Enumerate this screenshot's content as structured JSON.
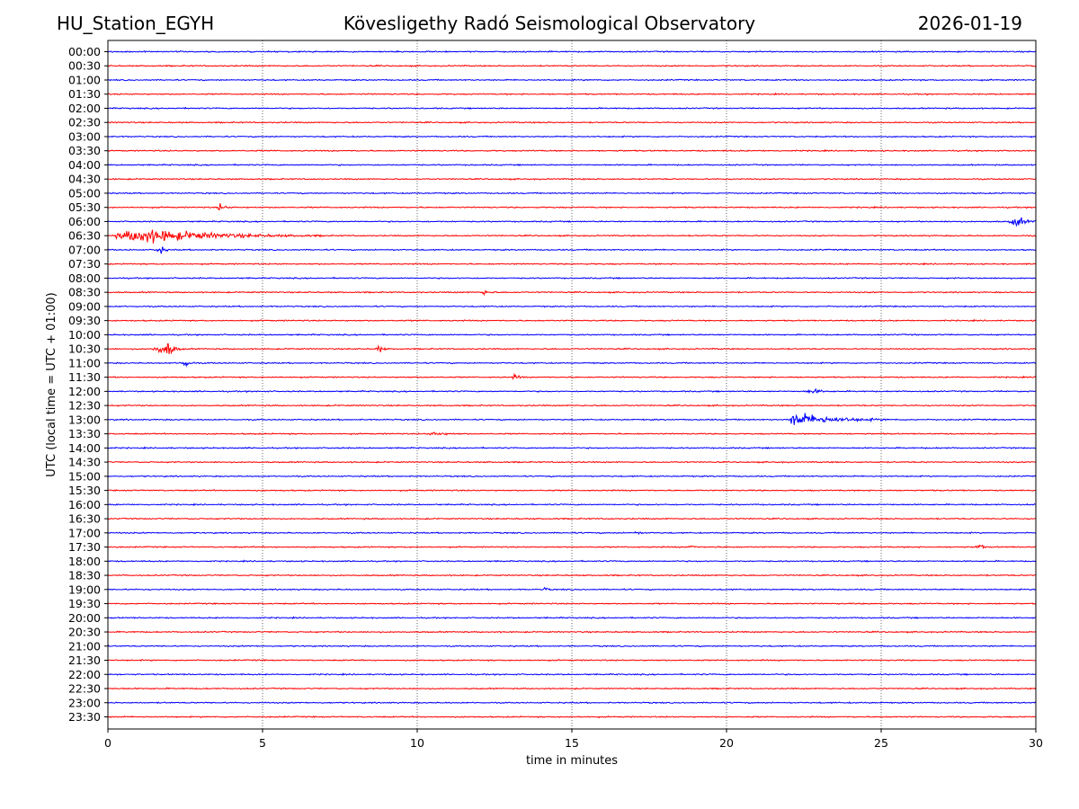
{
  "header": {
    "station": "HU_Station_EGYH",
    "title": "Kövesligethy Radó Seismological Observatory",
    "date": "2026-01-19"
  },
  "chart_data": {
    "type": "line",
    "xlabel": "time in minutes",
    "ylabel": "UTC (local time = UTC + 01:00)",
    "xlim": [
      0,
      30
    ],
    "xticks": [
      0,
      5,
      10,
      15,
      20,
      25,
      30
    ],
    "grid": "vertical dotted lines at each x tick",
    "row_labels": [
      "00:00",
      "00:30",
      "01:00",
      "01:30",
      "02:00",
      "02:30",
      "03:00",
      "03:30",
      "04:00",
      "04:30",
      "05:00",
      "05:30",
      "06:00",
      "06:30",
      "07:00",
      "07:30",
      "08:00",
      "08:30",
      "09:00",
      "09:30",
      "10:00",
      "10:30",
      "11:00",
      "11:30",
      "12:00",
      "12:30",
      "13:00",
      "13:30",
      "14:00",
      "14:30",
      "15:00",
      "15:30",
      "16:00",
      "16:30",
      "17:00",
      "17:30",
      "18:00",
      "18:30",
      "19:00",
      "19:30",
      "20:00",
      "20:30",
      "21:00",
      "21:30",
      "22:00",
      "22:30",
      "23:00",
      "23:30"
    ],
    "trace_colors": [
      "#0000ff",
      "#ff0000"
    ],
    "background_noise_amplitude": 0.08,
    "events": [
      {
        "row": "05:30",
        "start_min": 3.5,
        "peak_min": 3.65,
        "end_min": 4.0,
        "amplitude": 0.55
      },
      {
        "row": "06:00",
        "start_min": 29.1,
        "peak_min": 29.4,
        "end_min": 30.0,
        "amplitude": 0.75
      },
      {
        "row": "06:30",
        "start_min": 0.0,
        "peak_min": 1.2,
        "end_min": 7.0,
        "amplitude": 1.0
      },
      {
        "row": "07:00",
        "start_min": 1.5,
        "peak_min": 1.7,
        "end_min": 2.0,
        "amplitude": 0.65
      },
      {
        "row": "08:30",
        "start_min": 12.0,
        "peak_min": 12.2,
        "end_min": 12.6,
        "amplitude": 0.3
      },
      {
        "row": "10:30",
        "start_min": 1.4,
        "peak_min": 1.95,
        "end_min": 2.5,
        "amplitude": 0.95
      },
      {
        "row": "10:30",
        "start_min": 8.6,
        "peak_min": 8.8,
        "end_min": 9.1,
        "amplitude": 0.45
      },
      {
        "row": "11:00",
        "start_min": 2.3,
        "peak_min": 2.5,
        "end_min": 2.9,
        "amplitude": 0.6
      },
      {
        "row": "11:30",
        "start_min": 13.0,
        "peak_min": 13.2,
        "end_min": 13.5,
        "amplitude": 0.35
      },
      {
        "row": "12:00",
        "start_min": 22.5,
        "peak_min": 22.8,
        "end_min": 23.5,
        "amplitude": 0.3
      },
      {
        "row": "13:00",
        "start_min": 22.0,
        "peak_min": 22.2,
        "end_min": 25.5,
        "amplitude": 1.0
      },
      {
        "row": "13:30",
        "start_min": 10.3,
        "peak_min": 10.6,
        "end_min": 11.5,
        "amplitude": 0.25
      },
      {
        "row": "17:00",
        "start_min": 17.0,
        "peak_min": 17.15,
        "end_min": 17.3,
        "amplitude": 0.3
      },
      {
        "row": "17:30",
        "start_min": 18.7,
        "peak_min": 18.9,
        "end_min": 19.1,
        "amplitude": 0.45
      },
      {
        "row": "17:30",
        "start_min": 28.0,
        "peak_min": 28.2,
        "end_min": 28.4,
        "amplitude": 0.5
      },
      {
        "row": "19:00",
        "start_min": 14.0,
        "peak_min": 14.2,
        "end_min": 14.4,
        "amplitude": 0.25
      }
    ]
  }
}
